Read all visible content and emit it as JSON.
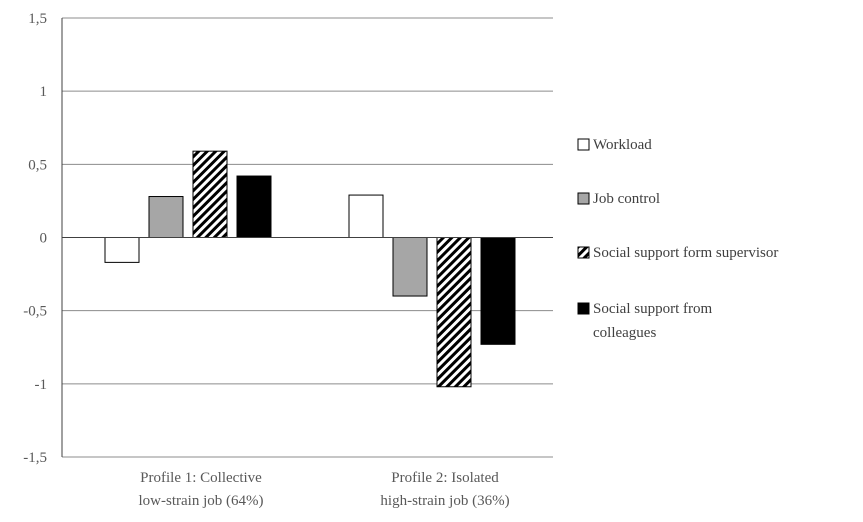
{
  "chart_data": {
    "type": "bar",
    "title": "",
    "xlabel": "",
    "ylabel": "",
    "ylim": [
      -1.5,
      1.5
    ],
    "yticks": [
      "1,5",
      "1",
      "0,5",
      "0",
      "-0,5",
      "-1",
      "-1,5"
    ],
    "ytick_values": [
      1.5,
      1,
      0.5,
      0,
      -0.5,
      -1,
      -1.5
    ],
    "grid": true,
    "legend_position": "right",
    "categories": [
      [
        "Profile 1: Collective",
        "low-strain job (64%)"
      ],
      [
        "Profile 2: Isolated",
        "high-strain job (36%)"
      ]
    ],
    "series": [
      {
        "name": "Workload",
        "values": [
          -0.17,
          0.29
        ],
        "fill": "#ffffff",
        "pattern": "none"
      },
      {
        "name": "Job control",
        "values": [
          0.28,
          -0.4
        ],
        "fill": "#a6a6a6",
        "pattern": "none"
      },
      {
        "name": "Social support form supervisor",
        "values": [
          0.59,
          -1.02
        ],
        "fill": "#ffffff",
        "pattern": "diagonal"
      },
      {
        "name": "Social support from colleagues",
        "values": [
          0.42,
          -0.73
        ],
        "fill": "#000000",
        "pattern": "none"
      }
    ],
    "legend_lines": [
      [
        "Workload"
      ],
      [
        "Job control"
      ],
      [
        "Social support form supervisor"
      ],
      [
        "Social support from",
        "colleagues"
      ]
    ]
  }
}
